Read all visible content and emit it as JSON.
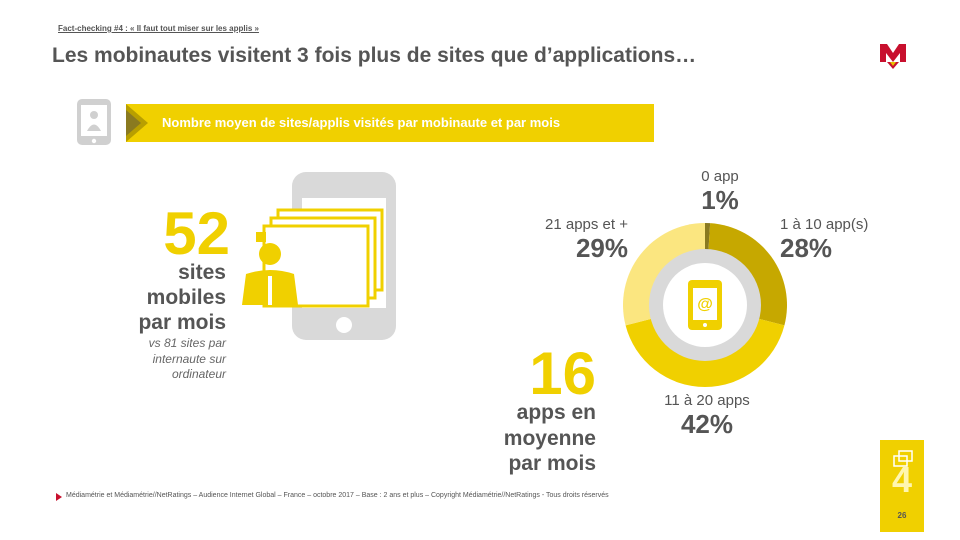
{
  "header": {
    "kicker": "Fact-checking #4 : « Il faut tout miser sur les applis »",
    "title": "Les mobinautes visitent  3 fois plus de sites que d’applications…"
  },
  "banner": {
    "label": "Nombre moyen de sites/applis visités par mobinaute et par mois"
  },
  "sites": {
    "value": "52",
    "unit_line1": "sites",
    "unit_line2": "mobiles",
    "unit_line3": "par mois",
    "note_line1": "vs 81 sites par",
    "note_line2": "internaute sur",
    "note_line3": "ordinateur"
  },
  "apps": {
    "value": "16",
    "unit_line1": "apps en",
    "unit_line2": "moyenne",
    "unit_line3": "par mois"
  },
  "chart_data": {
    "type": "pie",
    "categories": [
      "0 app",
      "1 à 10 app(s)",
      "11 à 20 apps",
      "21 apps et +"
    ],
    "values": [
      1,
      28,
      42,
      29
    ],
    "value_labels": [
      "1%",
      "28%",
      "42%",
      "29%"
    ],
    "colors": [
      "#8a7a20",
      "#c6a800",
      "#f0d000",
      "#fbe680"
    ]
  },
  "footer": {
    "source": "Médiamétrie et Médiamétrie//NetRatings – Audience Internet Global – France – octobre 2017 – Base : 2 ans et plus – Copyright Médiamétrie//NetRatings - Tous droits réservés",
    "page": "26",
    "chapter": "4"
  },
  "colors": {
    "accent": "#f0d000",
    "text": "#555555",
    "logo": "#c8102e",
    "grey": "#d8d8d8"
  }
}
